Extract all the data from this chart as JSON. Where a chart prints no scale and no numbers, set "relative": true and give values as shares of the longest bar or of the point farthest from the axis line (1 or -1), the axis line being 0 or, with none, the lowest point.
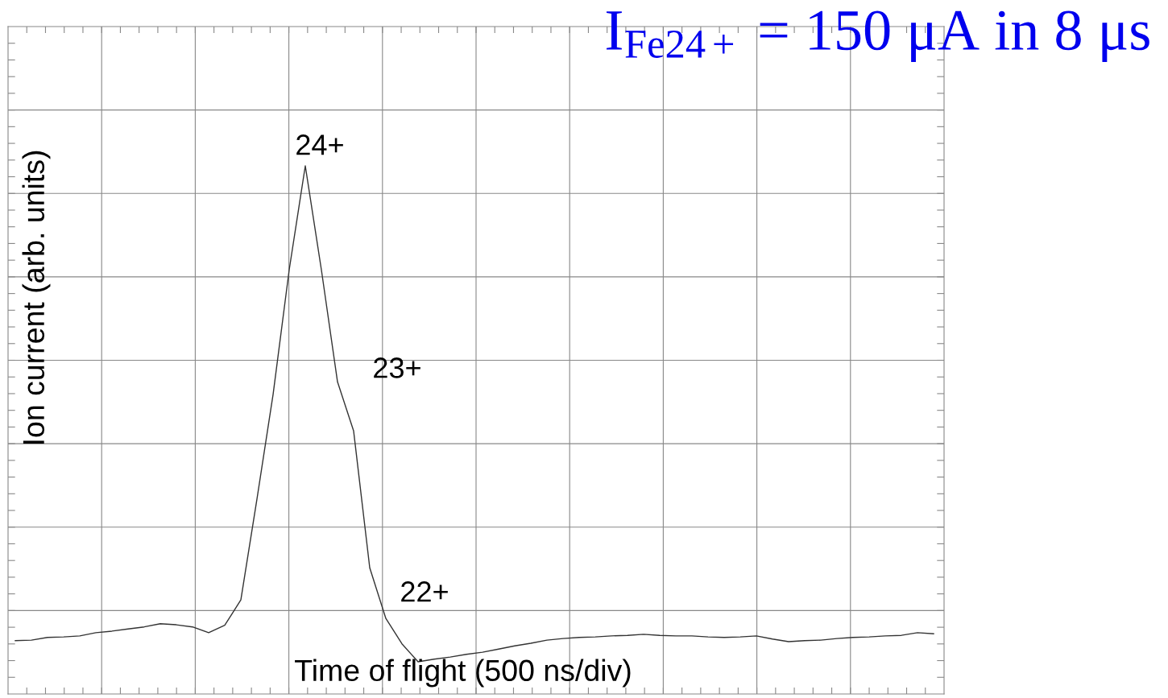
{
  "chart_data": {
    "type": "line",
    "title": "I$_{Fe24+}$ = 150 μA in 8 μs",
    "xlabel": "Time of flight (500 ns/div)",
    "ylabel": "Ion current (arb. units)",
    "relative": true,
    "grid": true,
    "legend": false,
    "marker": "none",
    "line_style": "solid",
    "categories": [
      null,
      null,
      null,
      null,
      null,
      null,
      null,
      null,
      null,
      null,
      null,
      null,
      null,
      null,
      null,
      null,
      null,
      null,
      null,
      null,
      null,
      null,
      null,
      null,
      null,
      null,
      null,
      null,
      null,
      null,
      null,
      null,
      null,
      null,
      null,
      null,
      null,
      null,
      null,
      null,
      null,
      null,
      null,
      null,
      null,
      null,
      null,
      null,
      null,
      null,
      null,
      null,
      null,
      null,
      null,
      null,
      null,
      null
    ],
    "series": [
      {
        "color": "#333333",
        "values": [
          0.101,
          0.102,
          0.107,
          0.108,
          0.11,
          0.116,
          0.119,
          0.123,
          0.127,
          0.133,
          0.131,
          0.127,
          0.116,
          0.13,
          0.178,
          0.369,
          0.567,
          0.803,
          1,
          0.803,
          0.591,
          0.498,
          0.239,
          0.143,
          0.095,
          0.061,
          0.066,
          0.07,
          0.075,
          0.079,
          0.085,
          0.091,
          0.096,
          0.102,
          0.105,
          0.107,
          0.108,
          0.11,
          0.111,
          0.113,
          0.111,
          0.11,
          0.11,
          0.108,
          0.107,
          0.108,
          0.11,
          0.104,
          0.099,
          0.101,
          0.102,
          0.105,
          0.107,
          0.108,
          0.11,
          0.111,
          0.116,
          0.114
        ]
      }
    ],
    "annotations": [
      "24+",
      "23+",
      "22+"
    ]
  }
}
